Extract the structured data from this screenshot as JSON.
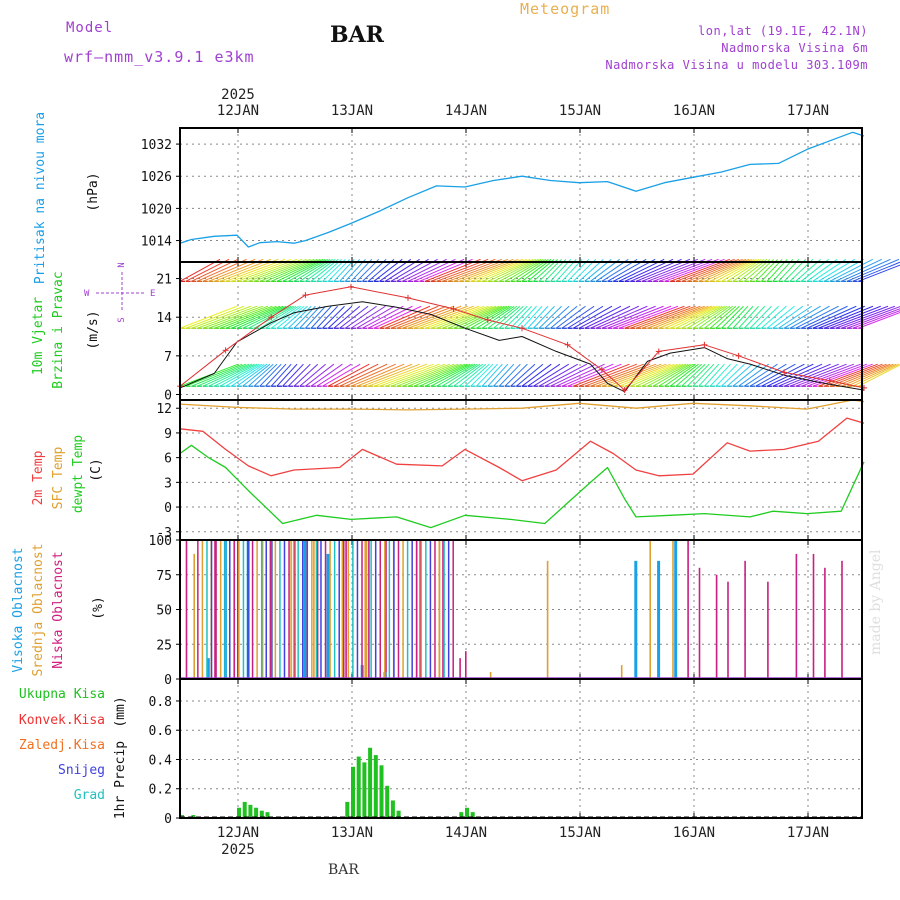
{
  "header": {
    "model_label": "Model",
    "model_name": "wrf–nmm_v3.9.1  e3km",
    "station": "BAR",
    "title": "Meteogram",
    "coords": "lon,lat (19.1E, 42.1N)",
    "altitude": "Nadmorska Visina 6m",
    "model_altitude": "Nadmorska Visina u modelu 303.109m",
    "watermark": "made by Angel",
    "footer_station": "BAR"
  },
  "time_axis": {
    "year": "2025",
    "days": [
      "12JAN",
      "13JAN",
      "14JAN",
      "15JAN",
      "16JAN",
      "17JAN"
    ]
  },
  "colors": {
    "pressure": "#1aa0e6",
    "temp2m": "#f04040",
    "sfc": "#e0a030",
    "dewpt": "#20cc20",
    "purple": "#a040d0",
    "precip_total": "#20c020",
    "convective": "#f03030",
    "freezing": "#f07020",
    "snow": "#4040e0",
    "hail": "#20c0c0"
  },
  "chart_data": [
    {
      "type": "line",
      "panel": "pressure",
      "title": "Pritisak na nivou mora",
      "ylabel": "(hPa)",
      "ylim": [
        1010,
        1035
      ],
      "yticks": [
        "1014",
        "1020",
        "1026",
        "1032"
      ],
      "x_days": [
        0.0,
        0.1,
        0.3,
        0.5,
        0.6,
        0.7,
        0.85,
        1.0,
        1.1,
        1.3,
        1.5,
        1.75,
        2.0,
        2.25,
        2.5,
        2.75,
        3.0,
        3.25,
        3.5,
        3.75,
        4.0,
        4.25,
        4.5,
        4.75,
        5.0,
        5.25,
        5.5,
        5.75,
        5.9,
        6.0
      ],
      "values": [
        1013.5,
        1014.2,
        1014.8,
        1015.0,
        1012.8,
        1013.6,
        1013.8,
        1013.5,
        1014.0,
        1015.5,
        1017.2,
        1019.5,
        1022.0,
        1024.2,
        1024.0,
        1025.2,
        1026.0,
        1025.2,
        1024.8,
        1025.0,
        1023.2,
        1024.8,
        1025.8,
        1026.8,
        1028.2,
        1028.4,
        1031.0,
        1033.0,
        1034.2,
        1033.5
      ]
    },
    {
      "type": "line",
      "panel": "wind",
      "title": "10m Vjetar",
      "subtitle": "Brzina i Pravac",
      "ylabel": "(m/s)",
      "ylim": [
        -1,
        24
      ],
      "yticks": [
        "0",
        "7",
        "14",
        "21"
      ],
      "compass": [
        "N",
        "S",
        "W",
        "E"
      ],
      "series": [
        {
          "name": "speed",
          "x_days": [
            0.0,
            0.3,
            0.5,
            0.8,
            1.0,
            1.3,
            1.6,
            1.9,
            2.2,
            2.5,
            2.8,
            3.0,
            3.3,
            3.6,
            3.75,
            3.9,
            4.1,
            4.3,
            4.6,
            4.8,
            5.0,
            5.3,
            5.6,
            5.8,
            6.0
          ],
          "values": [
            1.2,
            3.8,
            9.5,
            13.0,
            14.8,
            16.0,
            16.8,
            15.8,
            14.5,
            12.0,
            9.8,
            10.5,
            7.8,
            5.5,
            2.0,
            0.5,
            6.0,
            7.5,
            8.5,
            6.5,
            5.5,
            3.5,
            2.2,
            1.5,
            0.8
          ]
        },
        {
          "name": "gust",
          "x_days": [
            0.0,
            0.4,
            0.8,
            1.1,
            1.5,
            2.0,
            2.4,
            2.7,
            3.0,
            3.4,
            3.7,
            3.9,
            4.2,
            4.6,
            4.9,
            5.3,
            5.7,
            6.0
          ],
          "values": [
            1.5,
            8.0,
            14.0,
            18.0,
            19.5,
            17.5,
            15.5,
            13.5,
            12.0,
            9.0,
            4.5,
            0.8,
            7.8,
            9.0,
            7.0,
            4.0,
            2.5,
            1.2
          ]
        }
      ]
    },
    {
      "type": "line",
      "panel": "temperature",
      "title": "2m Temp",
      "subtitle": "SFC Temp",
      "subtitle2": "dewpt Temp",
      "ylabel": "(C)",
      "ylim": [
        -4,
        13
      ],
      "yticks": [
        "-3",
        "0",
        "3",
        "6",
        "9",
        "12"
      ],
      "series": [
        {
          "name": "SFC Temp",
          "x_days": [
            0.0,
            0.5,
            1.0,
            1.5,
            2.0,
            2.5,
            3.0,
            3.5,
            4.0,
            4.5,
            5.0,
            5.5,
            5.9,
            6.0
          ],
          "values": [
            12.5,
            12.1,
            11.9,
            11.9,
            11.8,
            11.9,
            12.0,
            12.6,
            12.0,
            12.6,
            12.3,
            11.9,
            13.0,
            12.8
          ]
        },
        {
          "name": "2m Temp",
          "x_days": [
            0.0,
            0.2,
            0.4,
            0.6,
            0.8,
            1.0,
            1.4,
            1.6,
            1.9,
            2.3,
            2.5,
            2.8,
            3.0,
            3.3,
            3.6,
            3.8,
            4.0,
            4.2,
            4.5,
            4.8,
            5.0,
            5.3,
            5.6,
            5.85,
            6.0
          ],
          "values": [
            9.5,
            9.2,
            7.0,
            5.0,
            3.8,
            4.5,
            4.8,
            7.0,
            5.2,
            5.0,
            7.0,
            4.8,
            3.2,
            4.5,
            8.0,
            6.5,
            4.5,
            3.8,
            4.0,
            7.8,
            6.8,
            7.0,
            8.0,
            10.8,
            10.2
          ]
        },
        {
          "name": "dewpt Temp",
          "x_days": [
            0.0,
            0.1,
            0.25,
            0.4,
            0.6,
            0.9,
            1.2,
            1.5,
            1.9,
            2.2,
            2.5,
            2.9,
            3.2,
            3.4,
            3.6,
            3.75,
            3.9,
            4.0,
            4.3,
            4.6,
            5.0,
            5.2,
            5.5,
            5.8,
            6.0
          ],
          "values": [
            6.5,
            7.5,
            6.0,
            4.8,
            2.0,
            -2.0,
            -1.0,
            -1.5,
            -1.2,
            -2.5,
            -1.0,
            -1.5,
            -2.0,
            0.5,
            3.0,
            4.8,
            1.0,
            -1.2,
            -1.0,
            -0.8,
            -1.2,
            -0.5,
            -0.8,
            -0.5,
            5.5
          ]
        }
      ]
    },
    {
      "type": "bar",
      "panel": "cloud",
      "title": "Visoka Oblacnost",
      "subtitle": "Srednja Oblacnost",
      "subtitle2": "Niska Oblacnost",
      "ylabel": "(%)",
      "ylim": [
        0,
        100
      ],
      "yticks": [
        "0",
        "25",
        "50",
        "75",
        "100"
      ],
      "series": [
        {
          "name": "Niska Oblacnost",
          "x_days": [
            0.05,
            0.3,
            0.5,
            0.8,
            1.0,
            1.2,
            1.45,
            1.65,
            1.8,
            2.1,
            2.3,
            2.45,
            2.5,
            4.45,
            4.55,
            4.7,
            4.8,
            4.95,
            5.15,
            5.4,
            5.55,
            5.65,
            5.8
          ],
          "values": [
            100,
            100,
            100,
            100,
            100,
            100,
            100,
            100,
            100,
            100,
            100,
            15,
            20,
            100,
            80,
            75,
            70,
            85,
            70,
            90,
            90,
            80,
            85
          ]
        },
        {
          "name": "Srednja Oblacnost",
          "x_days": [
            0.1,
            0.25,
            0.45,
            0.7,
            0.95,
            1.15,
            1.4,
            1.6,
            1.85,
            2.05,
            2.25,
            2.7,
            3.2,
            3.85,
            4.1,
            4.3
          ],
          "values": [
            90,
            100,
            100,
            100,
            100,
            100,
            100,
            100,
            100,
            100,
            100,
            5,
            85,
            10,
            100,
            100
          ]
        },
        {
          "name": "Visoka Oblacnost",
          "x_days": [
            0.2,
            0.35,
            0.55,
            0.75,
            1.05,
            1.25,
            1.55,
            1.75,
            3.95,
            4.15,
            4.3
          ],
          "values": [
            15,
            100,
            100,
            100,
            100,
            90,
            10,
            5,
            85,
            85,
            100
          ]
        }
      ]
    },
    {
      "type": "bar",
      "panel": "precip",
      "title": "1hr Precip",
      "ylabel": "(mm)",
      "ylim": [
        0,
        0.95
      ],
      "yticks": [
        "0",
        "0.2",
        "0.4",
        "0.6",
        "0.8"
      ],
      "legend": [
        "Ukupna Kisa",
        "Konvek.Kisa",
        "Zaledj.Kisa",
        "Snijeg",
        "Grad"
      ],
      "x_days": [
        0.0,
        0.1,
        0.5,
        0.55,
        0.6,
        0.65,
        0.7,
        0.75,
        1.45,
        1.5,
        1.55,
        1.6,
        1.65,
        1.7,
        1.75,
        1.8,
        1.85,
        1.9,
        2.45,
        2.5,
        2.55
      ],
      "values": [
        0.02,
        0.02,
        0.07,
        0.11,
        0.09,
        0.07,
        0.05,
        0.04,
        0.11,
        0.35,
        0.42,
        0.38,
        0.48,
        0.43,
        0.36,
        0.22,
        0.12,
        0.05,
        0.04,
        0.07,
        0.04
      ]
    }
  ]
}
